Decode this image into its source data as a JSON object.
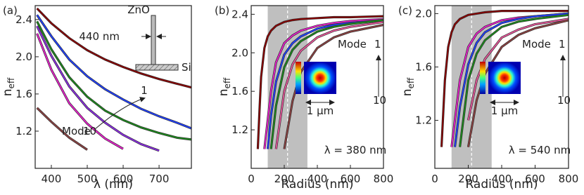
{
  "chart_data": [
    {
      "type": "line",
      "panel_label": "(a)",
      "xlabel": "λ (nm)",
      "ylabel": "n",
      "ylabel_sub": "eff",
      "xlim": [
        355,
        790
      ],
      "xticks": [
        400,
        500,
        600,
        700
      ],
      "ylim": [
        0.8,
        2.55
      ],
      "yticks": [
        1.2,
        1.6,
        {
          "value": 2,
          "label": "2.0"
        },
        2.4
      ],
      "x": [
        360,
        400,
        450,
        500,
        550,
        600,
        650,
        700,
        750,
        790
      ],
      "series": [
        {
          "color": "#8b0000",
          "values": [
            2.52,
            2.36,
            2.2,
            2.07,
            1.97,
            1.89,
            1.82,
            1.76,
            1.71,
            1.67
          ]
        },
        {
          "color": "#1f3fff",
          "values": [
            2.45,
            2.22,
            1.97,
            1.79,
            1.65,
            1.54,
            1.44,
            1.36,
            1.29,
            1.23
          ]
        },
        {
          "color": "#1b8a1b",
          "values": [
            2.38,
            2.08,
            1.78,
            1.57,
            1.42,
            1.32,
            1.24,
            1.18,
            1.13,
            1.11
          ]
        },
        {
          "color": "#8a2be2",
          "values": [
            2.33,
            2.01,
            1.68,
            1.45,
            1.29,
            1.16,
            1.06,
            0.99,
            null,
            null
          ]
        },
        {
          "color": "#e81ecc",
          "values": [
            2.25,
            1.86,
            1.5,
            1.28,
            1.12,
            1.01,
            null,
            null,
            null,
            null
          ]
        },
        {
          "color": "#8b4040",
          "values": [
            1.45,
            1.3,
            1.13,
            1.0,
            null,
            null,
            null,
            null,
            null,
            null
          ]
        }
      ],
      "annotations": {
        "inset_top": "ZnO",
        "inset_width": "440 nm",
        "inset_bottom": "Si",
        "mode_first": "1",
        "mode_word": "Mode",
        "mode_last": "10"
      }
    },
    {
      "type": "line",
      "panel_label": "(b)",
      "xlabel": "Radius (nm)",
      "ylabel": "n",
      "ylabel_sub": "eff",
      "xlim": [
        0,
        800
      ],
      "xticks": [
        0,
        200,
        400,
        600,
        800
      ],
      "ylim": [
        0.8,
        2.49
      ],
      "yticks": [
        1.2,
        1.6,
        {
          "value": 2,
          "label": "2.0"
        },
        2.4
      ],
      "shade": [
        100,
        340
      ],
      "dashed_x": 220,
      "x": [
        40,
        50,
        60,
        80,
        100,
        120,
        150,
        200,
        250,
        300,
        400,
        500,
        600,
        800
      ],
      "series": [
        {
          "color": "#8b0000",
          "values": [
            1.0,
            1.4,
            1.75,
            2.05,
            2.17,
            2.23,
            2.28,
            2.32,
            2.34,
            2.35,
            2.36,
            2.37,
            2.37,
            2.38
          ]
        },
        {
          "color": "#e81ecc",
          "values": [
            null,
            null,
            null,
            1.0,
            1.3,
            1.6,
            1.9,
            2.1,
            2.18,
            2.23,
            2.28,
            2.31,
            2.33,
            2.35
          ]
        },
        {
          "color": "#1f3fff",
          "values": [
            null,
            null,
            null,
            null,
            1.0,
            1.35,
            1.7,
            1.98,
            2.1,
            2.17,
            2.25,
            2.29,
            2.31,
            2.34
          ]
        },
        {
          "color": "#1b8a1b",
          "values": [
            null,
            null,
            null,
            null,
            null,
            1.0,
            1.45,
            1.85,
            2.03,
            2.12,
            2.22,
            2.27,
            2.3,
            2.34
          ]
        },
        {
          "color": "#e8559a",
          "values": [
            null,
            null,
            null,
            null,
            null,
            null,
            1.0,
            1.6,
            1.88,
            2.02,
            2.16,
            2.23,
            2.27,
            2.32
          ]
        },
        {
          "color": "#8b4040",
          "values": [
            null,
            null,
            null,
            null,
            null,
            null,
            null,
            1.0,
            1.5,
            1.8,
            2.05,
            2.16,
            2.22,
            2.29
          ]
        }
      ],
      "annotations": {
        "mode_word": "Mode",
        "mode_first": "1",
        "mode_last": "10",
        "scale": "1 µm",
        "wavelength": "λ = 380 nm"
      }
    },
    {
      "type": "line",
      "panel_label": "(c)",
      "xlabel": "Radius (nm)",
      "ylabel": "n",
      "ylabel_sub": "eff",
      "xlim": [
        0,
        800
      ],
      "xticks": [
        0,
        200,
        400,
        600,
        800
      ],
      "ylim": [
        0.84,
        2.06
      ],
      "yticks": [
        1.2,
        1.6,
        {
          "value": 2,
          "label": "2.0"
        }
      ],
      "shade": [
        100,
        340
      ],
      "dashed_x": 220,
      "x": [
        40,
        50,
        60,
        80,
        100,
        120,
        150,
        200,
        250,
        300,
        400,
        500,
        600,
        800
      ],
      "series": [
        {
          "color": "#8b0000",
          "values": [
            1.0,
            1.25,
            1.5,
            1.75,
            1.86,
            1.92,
            1.96,
            1.99,
            2.0,
            2.01,
            2.02,
            2.02,
            2.02,
            2.02
          ]
        },
        {
          "color": "#e81ecc",
          "values": [
            null,
            null,
            null,
            null,
            1.0,
            1.2,
            1.5,
            1.75,
            1.85,
            1.9,
            1.95,
            1.97,
            1.98,
            2.0
          ]
        },
        {
          "color": "#1f3fff",
          "values": [
            null,
            null,
            null,
            null,
            null,
            1.0,
            1.3,
            1.62,
            1.78,
            1.86,
            1.93,
            1.96,
            1.98,
            2.0
          ]
        },
        {
          "color": "#1b8a1b",
          "values": [
            null,
            null,
            null,
            null,
            null,
            null,
            1.0,
            1.5,
            1.7,
            1.8,
            1.9,
            1.94,
            1.96,
            1.99
          ]
        },
        {
          "color": "#e8559a",
          "values": [
            null,
            null,
            null,
            null,
            null,
            null,
            null,
            1.2,
            1.5,
            1.66,
            1.82,
            1.88,
            1.92,
            1.96
          ]
        },
        {
          "color": "#8b4040",
          "values": [
            null,
            null,
            null,
            null,
            null,
            null,
            null,
            1.0,
            1.35,
            1.55,
            1.75,
            1.84,
            1.89,
            1.95
          ]
        }
      ],
      "annotations": {
        "mode_word": "Mode",
        "mode_first": "1",
        "mode_last": "10",
        "scale": "1 µm",
        "wavelength": "λ = 540 nm"
      }
    }
  ]
}
